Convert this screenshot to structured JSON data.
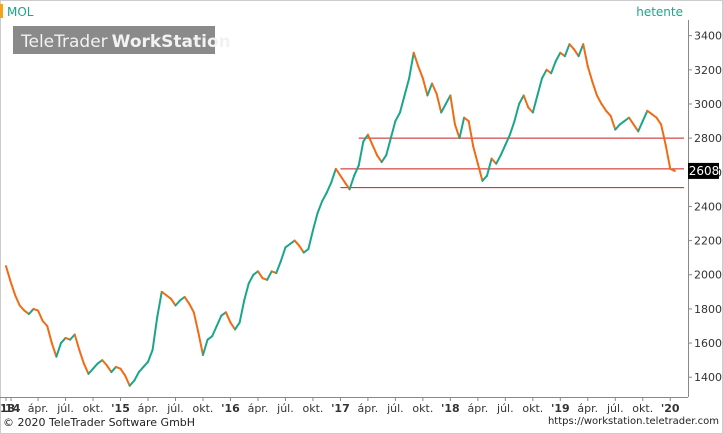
{
  "ticker": "MOL",
  "interval_label": "hetente",
  "logo": {
    "brand": "TeleTrader",
    "product": "WorkStation"
  },
  "footer": {
    "copyright": "© 2020 TeleTrader Software GmbH",
    "url": "https://workstation.teletrader.com"
  },
  "colors": {
    "up": "#1aa68a",
    "down": "#f26a13",
    "support_line": "#c81e1e",
    "badge": "#000000",
    "label_green": "#1aa68a"
  },
  "chart_data": {
    "type": "line",
    "title": "MOL",
    "y_ticks": [
      1400,
      1600,
      1800,
      2000,
      2200,
      2400,
      2600,
      2800,
      3000,
      3200,
      3400
    ],
    "ylim": [
      1290,
      3480
    ],
    "x_ticks": [
      {
        "label": "'13",
        "t": 0
      },
      {
        "label": "'14",
        "t": 0.55
      },
      {
        "label": "ápr.",
        "t": 3.5
      },
      {
        "label": "júl.",
        "t": 6.5
      },
      {
        "label": "okt.",
        "t": 9.5
      },
      {
        "label": "'15",
        "t": 12.5
      },
      {
        "label": "ápr.",
        "t": 15.5
      },
      {
        "label": "júl.",
        "t": 18.5
      },
      {
        "label": "okt.",
        "t": 21.5
      },
      {
        "label": "'16",
        "t": 24.5
      },
      {
        "label": "ápr.",
        "t": 27.5
      },
      {
        "label": "júl.",
        "t": 30.5
      },
      {
        "label": "okt.",
        "t": 33.5
      },
      {
        "label": "'17",
        "t": 36.5
      },
      {
        "label": "ápr.",
        "t": 39.5
      },
      {
        "label": "júl.",
        "t": 42.5
      },
      {
        "label": "okt.",
        "t": 45.5
      },
      {
        "label": "'18",
        "t": 48.5
      },
      {
        "label": "ápr.",
        "t": 51.5
      },
      {
        "label": "júl.",
        "t": 54.5
      },
      {
        "label": "okt.",
        "t": 57.5
      },
      {
        "label": "'19",
        "t": 60.5
      },
      {
        "label": "ápr.",
        "t": 63.5
      },
      {
        "label": "júl.",
        "t": 66.5
      },
      {
        "label": "okt.",
        "t": 69.5
      },
      {
        "label": "'20",
        "t": 72.5
      }
    ],
    "tlim": [
      0,
      74
    ],
    "series": [
      {
        "points": [
          [
            0.0,
            2050
          ],
          [
            0.5,
            1960
          ],
          [
            1.0,
            1880
          ],
          [
            1.5,
            1820
          ],
          [
            2.0,
            1790
          ],
          [
            2.5,
            1770
          ],
          [
            3.0,
            1800
          ],
          [
            3.5,
            1790
          ],
          [
            4.0,
            1730
          ],
          [
            4.5,
            1700
          ],
          [
            5.0,
            1600
          ],
          [
            5.5,
            1520
          ],
          [
            6.0,
            1600
          ],
          [
            6.5,
            1630
          ],
          [
            7.0,
            1620
          ],
          [
            7.5,
            1650
          ],
          [
            8.0,
            1560
          ],
          [
            8.5,
            1480
          ],
          [
            9.0,
            1420
          ],
          [
            9.5,
            1450
          ],
          [
            10.0,
            1480
          ],
          [
            10.5,
            1500
          ],
          [
            11.0,
            1470
          ],
          [
            11.5,
            1430
          ],
          [
            12.0,
            1460
          ],
          [
            12.5,
            1450
          ],
          [
            13.0,
            1410
          ],
          [
            13.5,
            1350
          ],
          [
            14.0,
            1380
          ],
          [
            14.5,
            1430
          ],
          [
            15.0,
            1460
          ],
          [
            15.5,
            1490
          ],
          [
            16.0,
            1560
          ],
          [
            16.5,
            1750
          ],
          [
            17.0,
            1900
          ],
          [
            17.5,
            1880
          ],
          [
            18.0,
            1860
          ],
          [
            18.5,
            1820
          ],
          [
            19.0,
            1850
          ],
          [
            19.5,
            1870
          ],
          [
            20.0,
            1830
          ],
          [
            20.5,
            1780
          ],
          [
            21.0,
            1660
          ],
          [
            21.5,
            1530
          ],
          [
            22.0,
            1620
          ],
          [
            22.5,
            1640
          ],
          [
            23.0,
            1700
          ],
          [
            23.5,
            1760
          ],
          [
            24.0,
            1780
          ],
          [
            24.5,
            1720
          ],
          [
            25.0,
            1680
          ],
          [
            25.5,
            1720
          ],
          [
            26.0,
            1850
          ],
          [
            26.5,
            1950
          ],
          [
            27.0,
            2000
          ],
          [
            27.5,
            2020
          ],
          [
            28.0,
            1980
          ],
          [
            28.5,
            1970
          ],
          [
            29.0,
            2020
          ],
          [
            29.5,
            2010
          ],
          [
            30.0,
            2080
          ],
          [
            30.5,
            2160
          ],
          [
            31.0,
            2180
          ],
          [
            31.5,
            2200
          ],
          [
            32.0,
            2170
          ],
          [
            32.5,
            2130
          ],
          [
            33.0,
            2150
          ],
          [
            33.5,
            2260
          ],
          [
            34.0,
            2360
          ],
          [
            34.5,
            2430
          ],
          [
            35.0,
            2480
          ],
          [
            35.5,
            2540
          ],
          [
            36.0,
            2620
          ],
          [
            36.5,
            2580
          ],
          [
            37.0,
            2540
          ],
          [
            37.5,
            2500
          ],
          [
            38.0,
            2580
          ],
          [
            38.5,
            2640
          ],
          [
            39.0,
            2780
          ],
          [
            39.5,
            2820
          ],
          [
            40.0,
            2760
          ],
          [
            40.5,
            2700
          ],
          [
            41.0,
            2660
          ],
          [
            41.5,
            2700
          ],
          [
            42.0,
            2800
          ],
          [
            42.5,
            2900
          ],
          [
            43.0,
            2950
          ],
          [
            43.5,
            3050
          ],
          [
            44.0,
            3150
          ],
          [
            44.5,
            3300
          ],
          [
            45.0,
            3220
          ],
          [
            45.5,
            3150
          ],
          [
            46.0,
            3050
          ],
          [
            46.5,
            3120
          ],
          [
            47.0,
            3060
          ],
          [
            47.5,
            2950
          ],
          [
            48.0,
            3000
          ],
          [
            48.5,
            3050
          ],
          [
            49.0,
            2880
          ],
          [
            49.5,
            2800
          ],
          [
            50.0,
            2920
          ],
          [
            50.5,
            2900
          ],
          [
            51.0,
            2750
          ],
          [
            51.5,
            2650
          ],
          [
            52.0,
            2550
          ],
          [
            52.5,
            2580
          ],
          [
            53.0,
            2680
          ],
          [
            53.5,
            2650
          ],
          [
            54.0,
            2700
          ],
          [
            54.5,
            2760
          ],
          [
            55.0,
            2820
          ],
          [
            55.5,
            2900
          ],
          [
            56.0,
            3000
          ],
          [
            56.5,
            3050
          ],
          [
            57.0,
            2980
          ],
          [
            57.5,
            2950
          ],
          [
            58.0,
            3050
          ],
          [
            58.5,
            3150
          ],
          [
            59.0,
            3200
          ],
          [
            59.5,
            3180
          ],
          [
            60.0,
            3250
          ],
          [
            60.5,
            3300
          ],
          [
            61.0,
            3280
          ],
          [
            61.5,
            3350
          ],
          [
            62.0,
            3320
          ],
          [
            62.5,
            3280
          ],
          [
            63.0,
            3350
          ],
          [
            63.5,
            3220
          ],
          [
            64.0,
            3130
          ],
          [
            64.5,
            3050
          ],
          [
            65.0,
            3000
          ],
          [
            65.5,
            2960
          ],
          [
            66.0,
            2930
          ],
          [
            66.5,
            2850
          ],
          [
            67.0,
            2880
          ],
          [
            67.5,
            2900
          ],
          [
            68.0,
            2920
          ],
          [
            68.5,
            2880
          ],
          [
            69.0,
            2840
          ],
          [
            69.5,
            2900
          ],
          [
            70.0,
            2960
          ],
          [
            70.5,
            2940
          ],
          [
            71.0,
            2920
          ],
          [
            71.5,
            2880
          ],
          [
            72.0,
            2760
          ],
          [
            72.5,
            2620
          ],
          [
            73.0,
            2608
          ]
        ]
      }
    ],
    "last_value": 2608,
    "horizontal_lines": [
      {
        "y": 2800,
        "from_t": 38.5
      },
      {
        "y": 2620,
        "from_t": 36.5
      },
      {
        "y": 2510,
        "from_t": 36.5
      }
    ],
    "grid": false,
    "y_axis_side": "right"
  }
}
